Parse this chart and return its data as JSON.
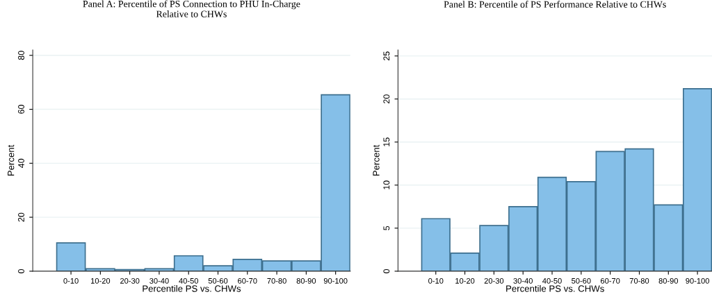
{
  "chart_data": [
    {
      "type": "bar",
      "title": "Panel A: Percentile of PS Connection to PHU In-Charge\nRelative to CHWs",
      "xlabel": "Percentile PS vs. CHWs",
      "ylabel": "Percent",
      "categories": [
        "0-10",
        "10-20",
        "20-30",
        "30-40",
        "40-50",
        "50-60",
        "60-70",
        "70-80",
        "80-90",
        "90-100"
      ],
      "values": [
        10.5,
        0.9,
        0.6,
        0.9,
        5.7,
        2.0,
        4.4,
        3.8,
        3.8,
        65.4
      ],
      "color": "#85bfe8",
      "ylim": [
        0,
        82
      ],
      "yticks": [
        0,
        20,
        40,
        60,
        80
      ],
      "grid": "y"
    },
    {
      "type": "bar",
      "title": "Panel B: Percentile of PS Performance Relative to CHWs",
      "xlabel": "Percentile PS vs. CHWs",
      "ylabel": "Percent",
      "categories": [
        "0-10",
        "10-20",
        "20-30",
        "30-40",
        "40-50",
        "50-60",
        "60-70",
        "70-80",
        "80-90",
        "90-100"
      ],
      "values": [
        6.1,
        2.1,
        5.3,
        7.5,
        10.9,
        10.4,
        13.9,
        14.2,
        7.7,
        21.2
      ],
      "color": "#85bfe8",
      "ylim": [
        0,
        25.7
      ],
      "yticks": [
        0,
        5,
        10,
        15,
        20,
        25
      ],
      "grid": "y"
    }
  ]
}
